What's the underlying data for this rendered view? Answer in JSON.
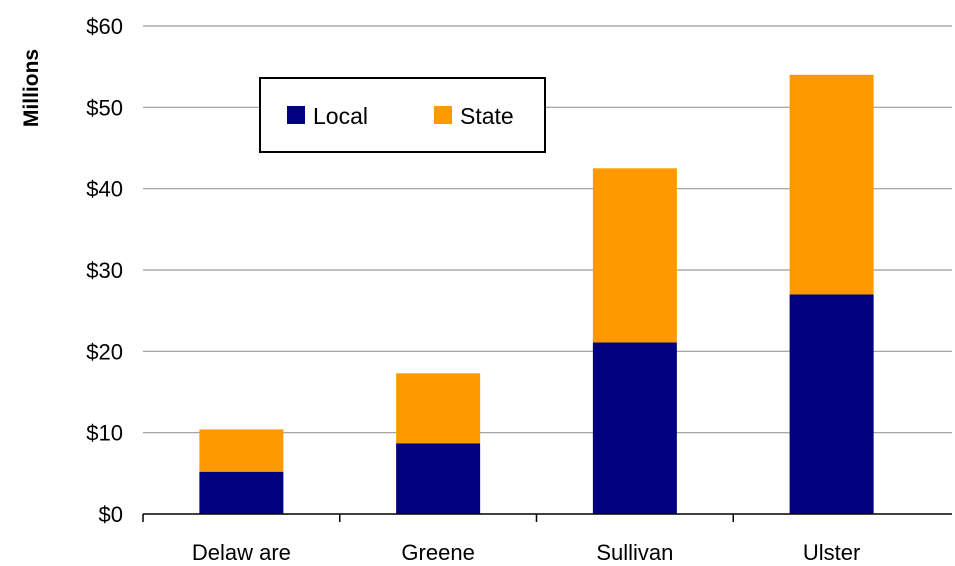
{
  "chart_data": {
    "type": "bar",
    "stacked": true,
    "ylabel": "Millions",
    "xlabel": "",
    "categories": [
      "Delaw are",
      "Greene",
      "Sullivan",
      "Ulster"
    ],
    "series": [
      {
        "name": "Local",
        "color": "#000080",
        "values": [
          5.2,
          8.7,
          21.1,
          27.0
        ]
      },
      {
        "name": "State",
        "color": "#FF9900",
        "values": [
          5.2,
          8.6,
          21.4,
          27.0
        ]
      }
    ],
    "ylim": [
      0,
      60
    ],
    "yticks": [
      0,
      10,
      20,
      30,
      40,
      50,
      60
    ],
    "ytick_labels": [
      "$0",
      "$10",
      "$20",
      "$30",
      "$40",
      "$50",
      "$60"
    ],
    "grid": true,
    "legend_position": "top-left"
  }
}
